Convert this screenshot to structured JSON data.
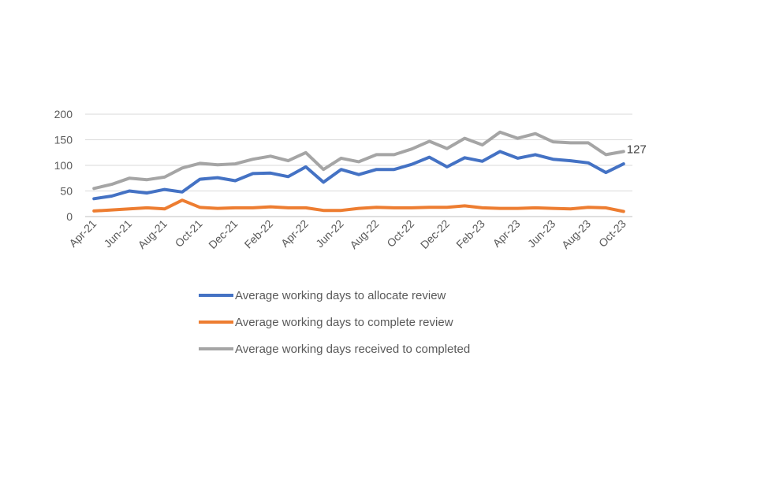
{
  "chart_data": {
    "type": "line",
    "title": "",
    "xlabel": "",
    "ylabel": "",
    "ylim": [
      0,
      200
    ],
    "yticks": [
      0,
      50,
      100,
      150,
      200
    ],
    "grid": "horizontal",
    "legend_position": "bottom",
    "x": [
      "Apr-21",
      "May-21",
      "Jun-21",
      "Jul-21",
      "Aug-21",
      "Sep-21",
      "Oct-21",
      "Nov-21",
      "Dec-21",
      "Jan-22",
      "Feb-22",
      "Mar-22",
      "Apr-22",
      "May-22",
      "Jun-22",
      "Jul-22",
      "Aug-22",
      "Sep-22",
      "Oct-22",
      "Nov-22",
      "Dec-22",
      "Jan-23",
      "Feb-23",
      "Mar-23",
      "Apr-23",
      "May-23",
      "Jun-23",
      "Jul-23",
      "Aug-23",
      "Sep-23",
      "Oct-23"
    ],
    "x_tick_labels": [
      "Apr-21",
      "Jun-21",
      "Aug-21",
      "Oct-21",
      "Dec-21",
      "Feb-22",
      "Apr-22",
      "Jun-22",
      "Aug-22",
      "Oct-22",
      "Dec-22",
      "Feb-23",
      "Apr-23",
      "Jun-23",
      "Aug-23",
      "Oct-23"
    ],
    "series": [
      {
        "name": "Average working days to allocate review",
        "color": "#4472C4",
        "values": [
          35,
          40,
          50,
          46,
          53,
          48,
          73,
          76,
          70,
          84,
          85,
          78,
          97,
          67,
          92,
          82,
          92,
          92,
          102,
          116,
          97,
          115,
          108,
          127,
          114,
          121,
          112,
          109,
          105,
          86,
          103
        ]
      },
      {
        "name": "Average working days to complete review",
        "color": "#ED7D31",
        "values": [
          11,
          13,
          15,
          17,
          15,
          32,
          18,
          16,
          17,
          17,
          19,
          17,
          17,
          12,
          12,
          16,
          18,
          17,
          17,
          18,
          18,
          21,
          17,
          16,
          16,
          17,
          16,
          15,
          18,
          17,
          10
        ]
      },
      {
        "name": "Average working days received to completed",
        "color": "#A5A5A5",
        "values": [
          55,
          63,
          75,
          72,
          77,
          95,
          104,
          101,
          103,
          112,
          118,
          109,
          125,
          92,
          114,
          107,
          121,
          121,
          132,
          147,
          133,
          153,
          140,
          165,
          153,
          162,
          146,
          144,
          144,
          121,
          127
        ]
      }
    ],
    "annotations": [
      {
        "series_index": 2,
        "point_index": 30,
        "text": "127"
      }
    ]
  }
}
